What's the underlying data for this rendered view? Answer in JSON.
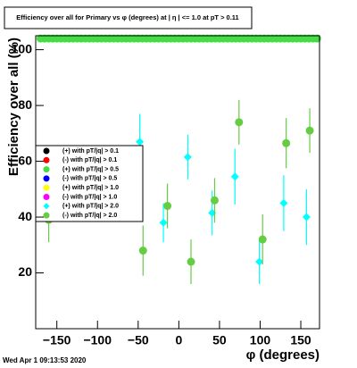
{
  "chart_data": {
    "type": "scatter",
    "title": "Efficiency over all for Primary vs φ (degrees) at | η | <= 1.0 at pT > 0.11",
    "x_label": "φ (degrees)",
    "y_label": "Efficiency over all (%)",
    "footer": "Wed Apr  1 09:13:53 2020",
    "xlim": [
      -176,
      173
    ],
    "ylim": [
      0,
      105
    ],
    "xticks": [
      {
        "value": -150,
        "label": "−150"
      },
      {
        "value": -100,
        "label": "−100"
      },
      {
        "value": -50,
        "label": "−50"
      },
      0,
      50,
      100,
      150
    ],
    "yticks": [
      20,
      40,
      60,
      80,
      100
    ],
    "series": [
      {
        "name": "(+) with pT/|q| > 0.1",
        "color": "#000000",
        "marker": "circle",
        "x": [],
        "values": [],
        "errors": []
      },
      {
        "name": "(-) with pT/|q| > 0.1",
        "color": "#ff0000",
        "marker": "circle",
        "x": [],
        "values": [],
        "errors": []
      },
      {
        "name": "(+) with pT/|q| > 0.5",
        "color": "#44dd44",
        "marker": "circle",
        "x": [
          -170,
          -165,
          -160,
          -155,
          -150,
          -145,
          -140,
          -135,
          -130,
          -125,
          -120,
          -115,
          -110,
          -105,
          -100,
          -95,
          -90,
          -85,
          -80,
          -75,
          -70,
          -65,
          -60,
          -55,
          -50,
          -45,
          -40,
          -35,
          -30,
          -25,
          -20,
          -15,
          -10,
          -5,
          0,
          5,
          10,
          15,
          20,
          25,
          30,
          35,
          40,
          45,
          50,
          55,
          60,
          65,
          70,
          75,
          80,
          85,
          90,
          95,
          100,
          105,
          110,
          115,
          120,
          125,
          130,
          135,
          140,
          145,
          150,
          155,
          160,
          165,
          170
        ],
        "values": [
          104,
          104,
          104,
          104,
          104,
          104,
          104,
          104,
          104,
          104,
          104,
          104,
          104,
          104,
          104,
          104,
          104,
          104,
          104,
          104,
          104,
          104,
          104,
          104,
          104,
          104,
          104,
          104,
          104,
          104,
          104,
          104,
          104,
          104,
          104,
          104,
          104,
          104,
          104,
          104,
          104,
          104,
          104,
          104,
          104,
          104,
          104,
          104,
          104,
          104,
          104,
          104,
          104,
          104,
          104,
          104,
          104,
          104,
          104,
          104,
          104,
          104,
          104,
          104,
          104,
          104,
          104,
          104,
          104
        ],
        "errors": [
          0,
          0,
          0,
          0,
          0,
          0,
          0,
          0,
          0,
          0,
          0,
          0,
          0,
          0,
          0,
          0,
          0,
          0,
          0,
          0,
          0,
          0,
          0,
          0,
          0,
          0,
          0,
          0,
          0,
          0,
          0,
          0,
          0,
          0,
          0,
          0,
          0,
          0,
          0,
          0,
          0,
          0,
          0,
          0,
          0,
          0,
          0,
          0,
          0,
          0,
          0,
          0,
          0,
          0,
          0,
          0,
          0,
          0,
          0,
          0,
          0,
          0,
          0,
          0,
          0,
          0,
          0,
          0,
          0
        ]
      },
      {
        "name": "(-) with pT/|q| > 0.5",
        "color": "#0000ff",
        "marker": "circle",
        "x": [],
        "values": [],
        "errors": []
      },
      {
        "name": "(+) with pT/|q| > 1.0",
        "color": "#ffff00",
        "marker": "circle",
        "x": [],
        "values": [],
        "errors": []
      },
      {
        "name": "(-) with pT/|q| > 1.0",
        "color": "#ff00ff",
        "marker": "circle",
        "x": [],
        "values": [],
        "errors": []
      },
      {
        "name": "(+) with pT/|q| > 2.0",
        "color": "#00ffff",
        "marker": "diamond",
        "x": [
          -48,
          -19,
          11,
          41,
          69,
          99,
          129,
          157
        ],
        "values": [
          67,
          38,
          61.5,
          41.5,
          54.5,
          24,
          45,
          40
        ],
        "errors": [
          10,
          7,
          8,
          8,
          10,
          8,
          10,
          10
        ]
      },
      {
        "name": "(-) with pT/|q| > 2.0",
        "color": "#66cc44",
        "marker": "circle",
        "x": [
          -160,
          -44,
          -14,
          15,
          44,
          74,
          103,
          132,
          161
        ],
        "values": [
          39,
          28,
          44,
          24,
          46,
          74,
          32,
          66.5,
          71
        ],
        "errors": [
          8,
          9,
          8,
          8,
          8,
          8,
          9,
          9,
          8
        ]
      }
    ]
  }
}
